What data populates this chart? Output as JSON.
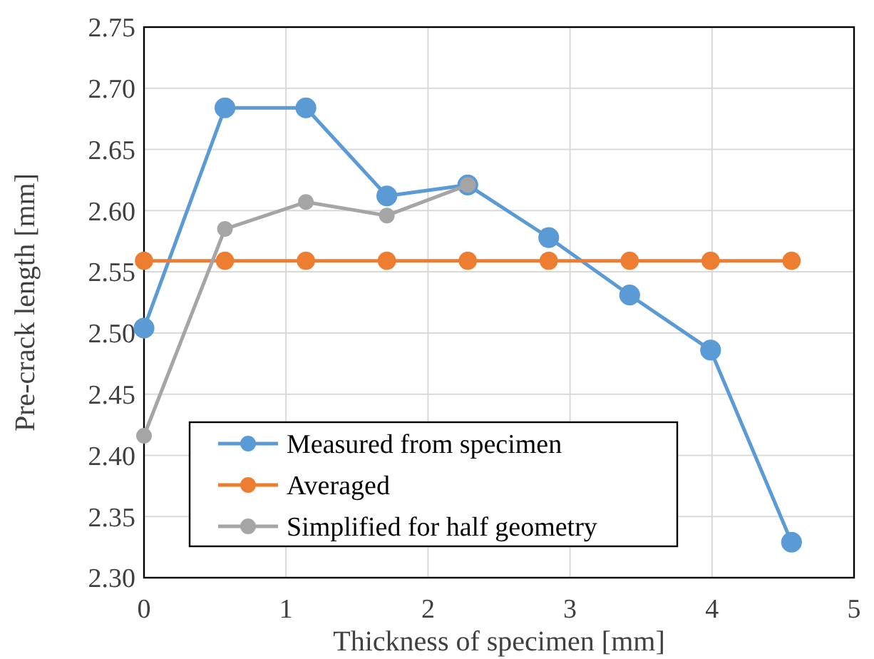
{
  "chart_data": {
    "type": "line",
    "xlabel": "Thickness of specimen [mm]",
    "ylabel": "Pre-crack length [mm]",
    "x": [
      0,
      0.57,
      1.14,
      1.71,
      2.28,
      2.85,
      3.42,
      3.99,
      4.56
    ],
    "series": [
      {
        "name": "Measured from specimen",
        "color": "#5b9bd5",
        "values": [
          2.504,
          2.684,
          2.684,
          2.612,
          2.621,
          2.578,
          2.531,
          2.486,
          2.329
        ]
      },
      {
        "name": "Averaged",
        "color": "#ed7d31",
        "values": [
          2.559,
          2.559,
          2.559,
          2.559,
          2.559,
          2.559,
          2.559,
          2.559,
          2.559
        ]
      },
      {
        "name": "Simplified for half geometry",
        "color": "#a5a5a5",
        "x": [
          0,
          0.57,
          1.14,
          1.71,
          2.28
        ],
        "values": [
          2.416,
          2.585,
          2.607,
          2.596,
          2.621
        ]
      }
    ],
    "xlim": [
      0,
      5
    ],
    "xticks": [
      0,
      1,
      2,
      3,
      4,
      5
    ],
    "ylim": [
      2.3,
      2.75
    ],
    "yticks": [
      {
        "value": 2.3,
        "label": "2.30"
      },
      {
        "value": 2.35,
        "label": "2.35"
      },
      {
        "value": 2.4,
        "label": "2.40"
      },
      {
        "value": 2.45,
        "label": "2.45"
      },
      {
        "value": 2.5,
        "label": "2.50"
      },
      {
        "value": 2.55,
        "label": "2.55"
      },
      {
        "value": 2.6,
        "label": "2.60"
      },
      {
        "value": 2.65,
        "label": "2.65"
      },
      {
        "value": 2.7,
        "label": "2.70"
      },
      {
        "value": 2.75,
        "label": "2.75"
      }
    ],
    "grid": true,
    "legend": "bottom left",
    "marker": "circle",
    "line_style": "solid"
  }
}
